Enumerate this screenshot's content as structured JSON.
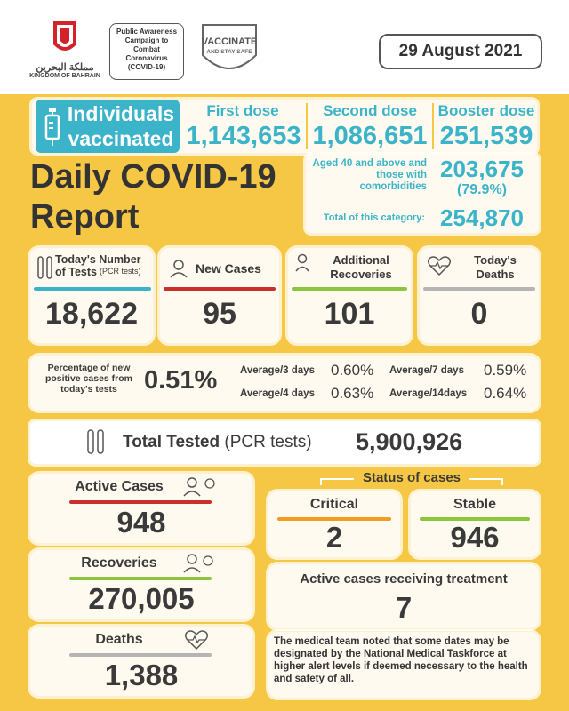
{
  "header": {
    "kingdom_arabic": "مملكة البحرين",
    "kingdom_label": "KINGDOM OF BAHRAIN",
    "campaign_text": "Public Awareness Campaign to Combat Coronavirus (COVID-19)",
    "vaccinate_title": "VACCINATE",
    "vaccinate_sub": "AND STAY SAFE",
    "date": "29 August 2021"
  },
  "vaccination": {
    "badge_line1": "Individuals",
    "badge_line2": "vaccinated",
    "first_dose_label": "First dose",
    "first_dose_value": "1,143,653",
    "second_dose_label": "Second dose",
    "second_dose_value": "1,086,651",
    "booster_label": "Booster dose",
    "booster_value": "251,539",
    "aged_label": "Aged 40 and above and those with comorbidities",
    "aged_value": "203,675",
    "aged_pct": "(79.9%)",
    "total_category_label": "Total of this category:",
    "total_category_value": "254,870"
  },
  "report_title_line1": "Daily COVID-19",
  "report_title_line2": "Report",
  "stats": {
    "tests_label": "Today's Number of Tests",
    "tests_sub": "(PCR tests)",
    "tests_value": "18,622",
    "new_cases_label": "New Cases",
    "new_cases_value": "95",
    "recoveries_label": "Additional Recoveries",
    "recoveries_value": "101",
    "deaths_label": "Today's Deaths",
    "deaths_value": "0"
  },
  "percentages": {
    "label": "Percentage of new positive cases from today's tests",
    "value": "0.51%",
    "avg3_label": "Average/3 days",
    "avg3_value": "0.60%",
    "avg7_label": "Average/7 days",
    "avg7_value": "0.59%",
    "avg4_label": "Average/4 days",
    "avg4_value": "0.63%",
    "avg14_label": "Average/14days",
    "avg14_value": "0.64%"
  },
  "total_tested": {
    "label": "Total Tested",
    "sub": "(PCR tests)",
    "value": "5,900,926"
  },
  "cases": {
    "active_label": "Active Cases",
    "active_value": "948",
    "recoveries_label": "Recoveries",
    "recoveries_value": "270,005",
    "deaths_label": "Deaths",
    "deaths_value": "1,388",
    "status_title": "Status of cases",
    "critical_label": "Critical",
    "critical_value": "2",
    "stable_label": "Stable",
    "stable_value": "946",
    "treatment_label": "Active cases receiving treatment",
    "treatment_value": "7",
    "note": "The medical team noted that some dates may be designated by the National Medical Taskforce at higher alert levels if deemed necessary to the health and safety of all."
  },
  "colors": {
    "background": "#f6c744",
    "teal": "#3bb3c8",
    "red": "#c9302c",
    "green": "#8cc63f",
    "gray": "#b5b5b5",
    "orange": "#f39c1f"
  }
}
